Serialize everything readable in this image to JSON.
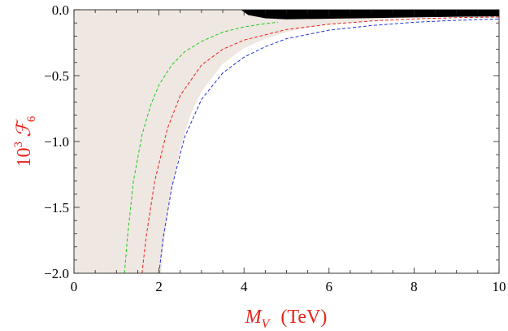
{
  "chart_data": {
    "type": "area",
    "title": "",
    "xlabel": {
      "symbol": "M",
      "subscript": "V",
      "unit": "(TeV)"
    },
    "ylabel": {
      "prefix": "10",
      "exponent": "3",
      "symbol": "ℱ",
      "subscript": "6"
    },
    "xlim": [
      0,
      10
    ],
    "ylim": [
      -2.0,
      0.0
    ],
    "x_ticks": [
      0,
      2,
      4,
      6,
      8,
      10
    ],
    "x_tick_labels": [
      "0",
      "2",
      "4",
      "6",
      "8",
      "10"
    ],
    "y_ticks": [
      0.0,
      -0.5,
      -1.0,
      -1.5,
      -2.0
    ],
    "y_tick_labels": [
      "0.0",
      "−0.5",
      "−1.0",
      "−1.5",
      "−2.0"
    ],
    "grid": false,
    "legend": "none",
    "colors": {
      "band": "#efe7e1",
      "excluded": "#000000",
      "green": "#22cc22",
      "red": "#e8241d",
      "blue": "#2233dd",
      "axis_title": "#e8241d"
    },
    "band": {
      "lower_boundary": {
        "x": [
          2.05,
          2.1,
          2.25,
          2.5,
          2.75,
          3.0,
          3.5,
          4.0,
          4.5,
          5.0,
          5.5,
          6.0,
          7.0,
          8.0,
          9.0,
          10.0
        ],
        "y": [
          -2.0,
          -1.8,
          -1.45,
          -1.05,
          -0.79,
          -0.62,
          -0.41,
          -0.29,
          -0.22,
          -0.17,
          -0.135,
          -0.11,
          -0.08,
          -0.06,
          -0.045,
          -0.035
        ]
      },
      "upper_boundary": {
        "x": [
          0.0,
          10.0
        ],
        "y": [
          0.0,
          0.0
        ]
      }
    },
    "excluded_region": {
      "x": [
        3.93,
        4.1,
        4.5,
        5.0,
        6.0,
        7.0,
        8.0,
        9.0,
        10.0
      ],
      "y": [
        0.0,
        -0.04,
        -0.065,
        -0.072,
        -0.068,
        -0.063,
        -0.058,
        -0.053,
        -0.05
      ]
    },
    "series": [
      {
        "color": "green",
        "style": "dashed",
        "x": [
          1.19,
          1.25,
          1.4,
          1.6,
          1.8,
          2.0,
          2.3,
          2.6,
          3.0,
          3.5,
          4.0,
          4.5,
          4.8
        ],
        "y": [
          -2.0,
          -1.75,
          -1.3,
          -0.95,
          -0.73,
          -0.57,
          -0.42,
          -0.32,
          -0.24,
          -0.17,
          -0.13,
          -0.105,
          -0.095
        ]
      },
      {
        "color": "red",
        "style": "dashed",
        "x": [
          1.6,
          1.7,
          1.9,
          2.2,
          2.5,
          3.0,
          3.5,
          4.0,
          5.0,
          6.0,
          7.0,
          8.0,
          9.0,
          10.0
        ],
        "y": [
          -2.0,
          -1.72,
          -1.3,
          -0.9,
          -0.65,
          -0.42,
          -0.3,
          -0.23,
          -0.15,
          -0.11,
          -0.085,
          -0.07,
          -0.06,
          -0.055
        ]
      },
      {
        "color": "blue",
        "style": "dashed",
        "x": [
          2.0,
          2.1,
          2.3,
          2.6,
          3.0,
          3.5,
          4.0,
          4.5,
          5.0,
          6.0,
          7.0,
          8.0,
          9.0,
          10.0
        ],
        "y": [
          -2.0,
          -1.73,
          -1.35,
          -0.97,
          -0.68,
          -0.48,
          -0.36,
          -0.28,
          -0.22,
          -0.155,
          -0.12,
          -0.095,
          -0.08,
          -0.07
        ]
      }
    ]
  }
}
